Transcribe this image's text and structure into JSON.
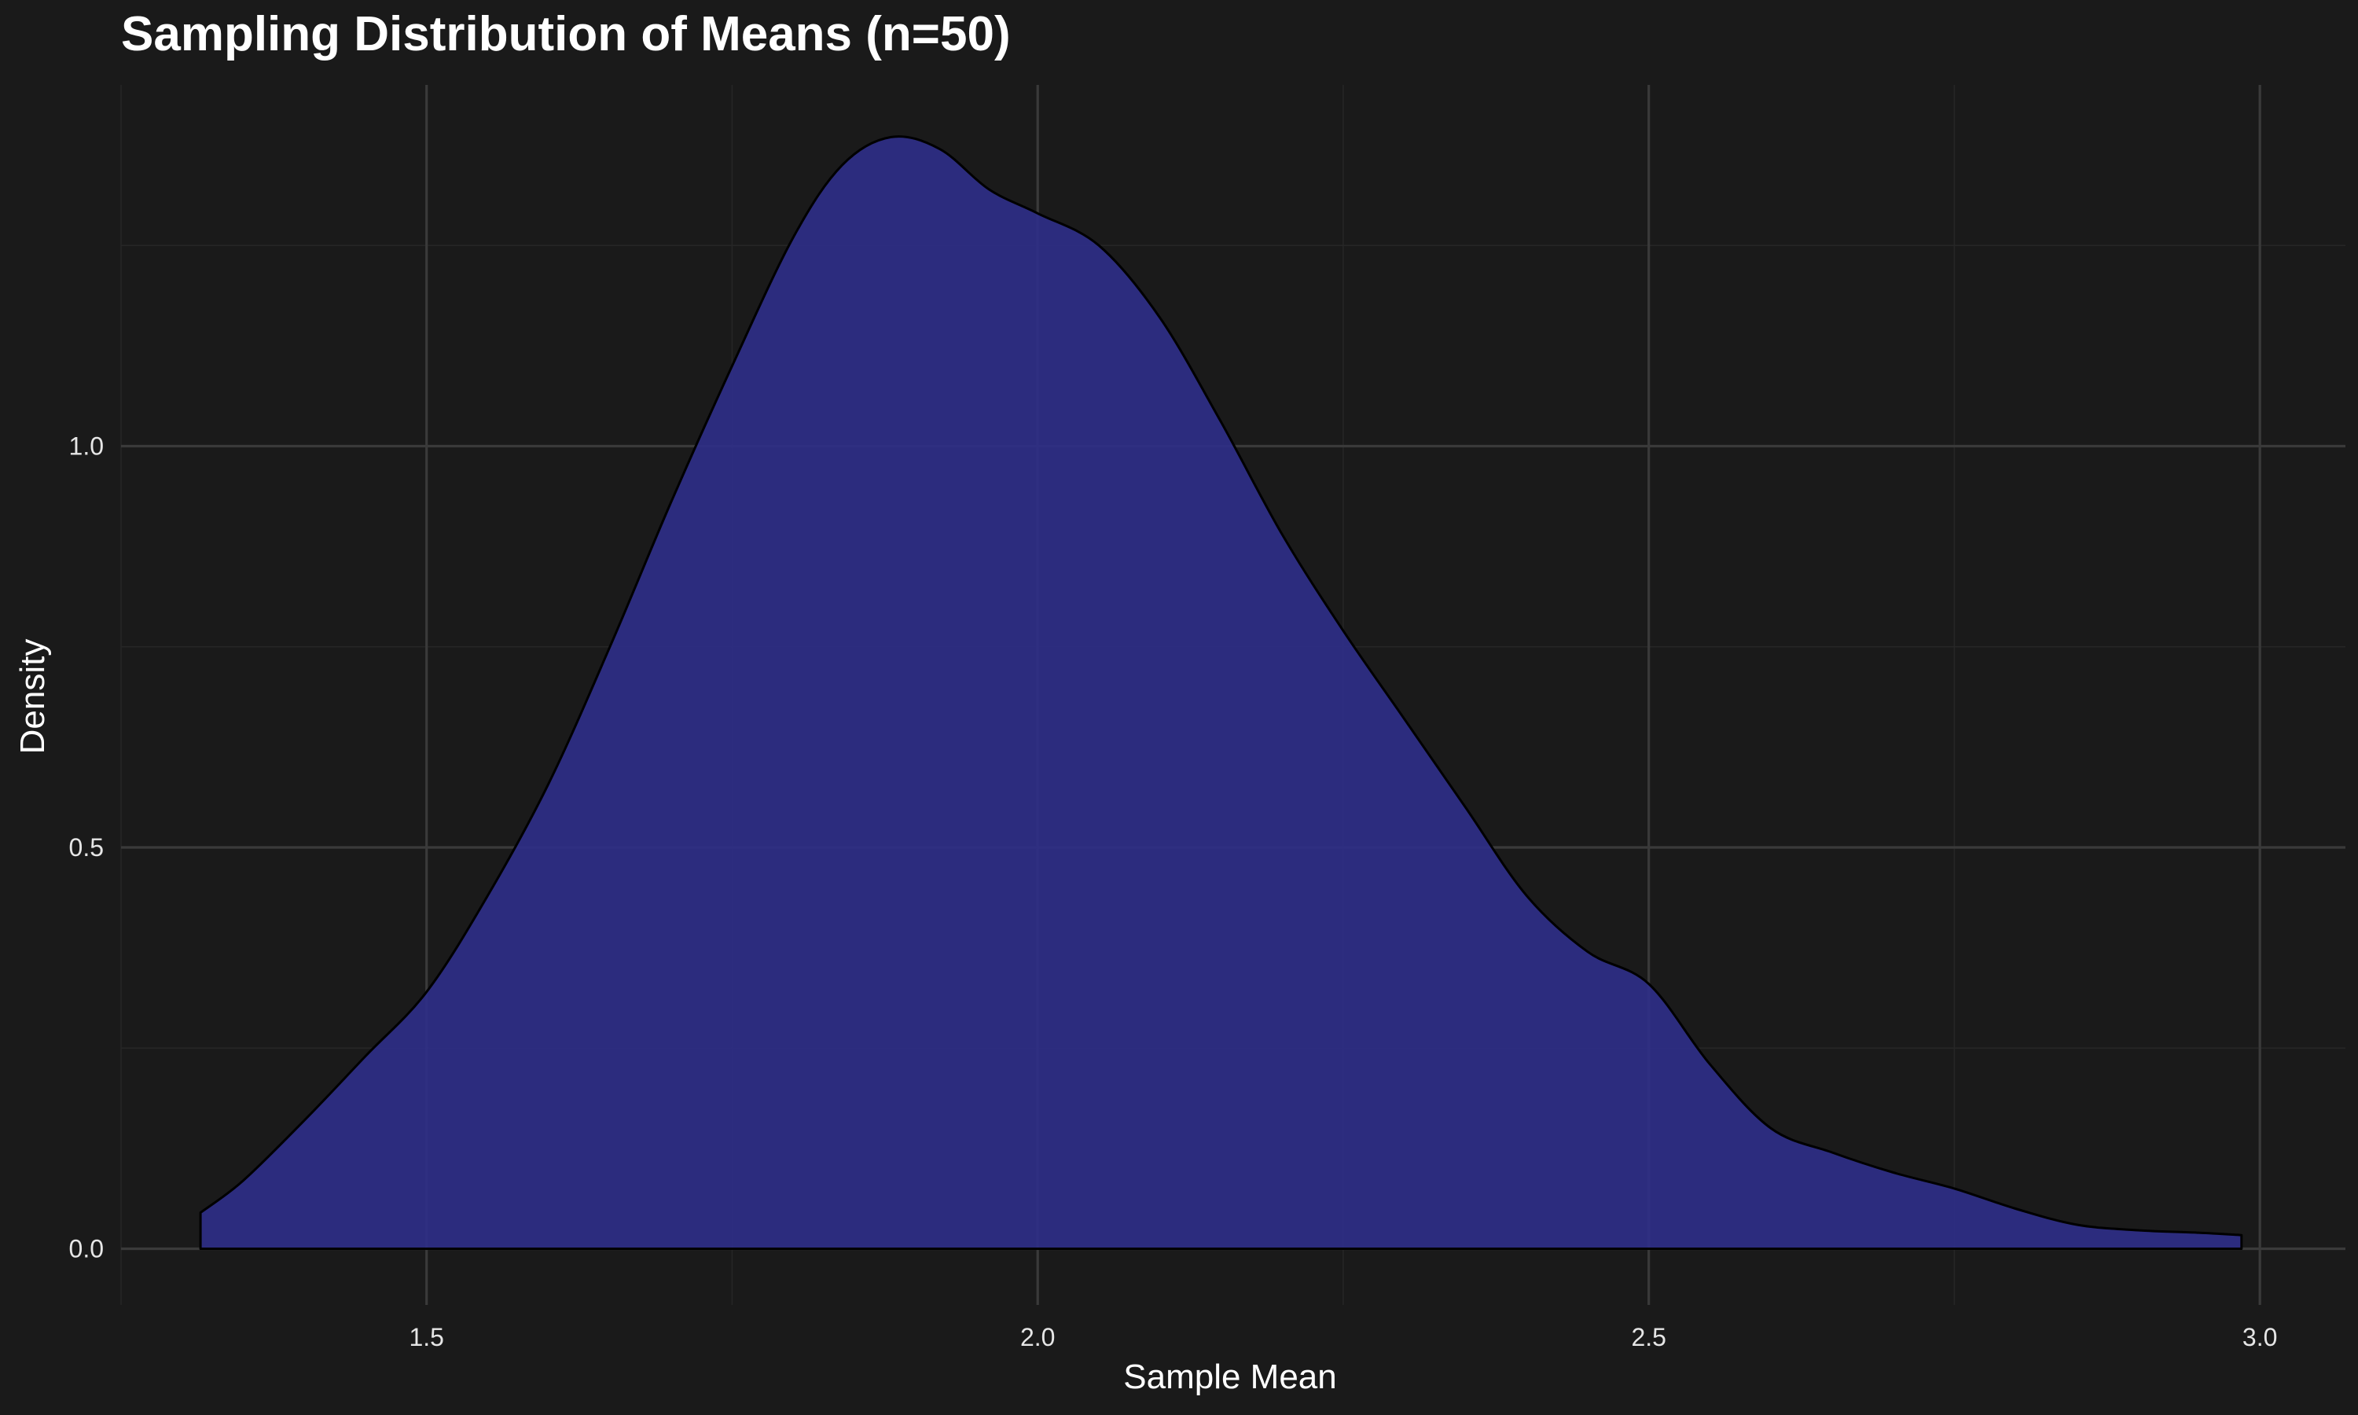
{
  "chart_data": {
    "type": "area",
    "title": "Sampling Distribution of Means (n=50)",
    "xlabel": "Sample Mean",
    "ylabel": "Density",
    "xlim": [
      1.25,
      3.07
    ],
    "ylim": [
      -0.07,
      1.45
    ],
    "x_ticks": [
      1.5,
      2.0,
      2.5,
      3.0
    ],
    "x_tick_labels": [
      "1.5",
      "2.0",
      "2.5",
      "3.0"
    ],
    "y_ticks": [
      0.0,
      0.5,
      1.0
    ],
    "y_tick_labels": [
      "0.0",
      "0.5",
      "1.0"
    ],
    "x_minor_ticks": [
      1.25,
      1.75,
      2.25,
      2.75
    ],
    "y_minor_ticks": [
      0.25,
      0.75,
      1.25
    ],
    "grid": true,
    "legend": "none",
    "colors": {
      "background": "#1a1a1a",
      "fill": "#2f2f8a",
      "outline": "#000000",
      "grid_major": "#3a3a3a",
      "grid_minor": "#262626"
    },
    "series": [
      {
        "x": [
          1.315,
          1.35,
          1.4,
          1.45,
          1.5,
          1.55,
          1.6,
          1.65,
          1.7,
          1.75,
          1.8,
          1.84,
          1.88,
          1.92,
          1.96,
          2.0,
          2.05,
          2.1,
          2.15,
          2.2,
          2.25,
          2.3,
          2.35,
          2.4,
          2.45,
          2.5,
          2.55,
          2.6,
          2.65,
          2.7,
          2.75,
          2.8,
          2.85,
          2.9,
          2.95,
          2.985
        ],
        "y": [
          0.045,
          0.085,
          0.16,
          0.24,
          0.32,
          0.44,
          0.58,
          0.75,
          0.93,
          1.1,
          1.26,
          1.35,
          1.385,
          1.37,
          1.32,
          1.29,
          1.25,
          1.16,
          1.03,
          0.89,
          0.77,
          0.66,
          0.55,
          0.44,
          0.37,
          0.33,
          0.23,
          0.15,
          0.12,
          0.095,
          0.075,
          0.05,
          0.03,
          0.023,
          0.02,
          0.017
        ]
      }
    ]
  }
}
